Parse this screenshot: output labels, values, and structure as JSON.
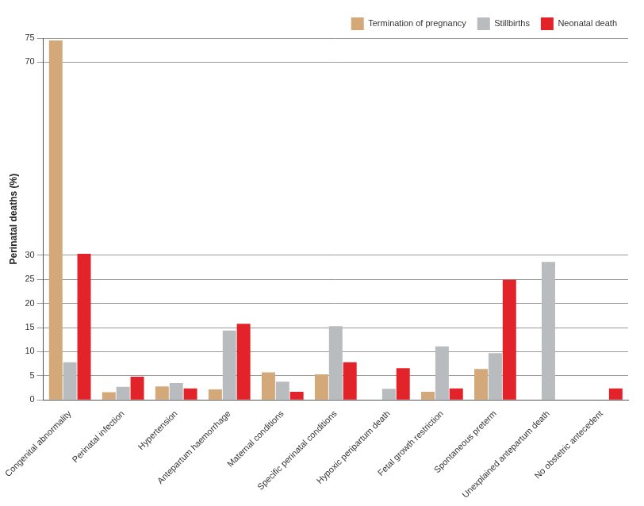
{
  "chart_data": {
    "type": "bar",
    "y_label": "Perinatal deaths (%)",
    "categories": [
      "Congenital abnormality",
      "Perinatal infection",
      "Hypertension",
      "Antepartum haemorrhage",
      "Maternal conditions",
      "Specific perinatal conditions",
      "Hypoxic peripartum death",
      "Fetal growth restriction",
      "Spontaneous preterm",
      "Unexplained antepartum death",
      "No obstetric antecedent"
    ],
    "series": [
      {
        "name": "Termination of pregnancy",
        "color": "#d4a97a",
        "values": [
          74.5,
          1.6,
          2.8,
          2.2,
          5.7,
          5.3,
          0,
          1.7,
          6.4,
          0,
          0
        ]
      },
      {
        "name": "Stillbirths",
        "color": "#b9bcbf",
        "values": [
          7.8,
          2.7,
          3.5,
          14.4,
          3.8,
          15.3,
          2.3,
          11.1,
          9.7,
          28.6,
          0
        ]
      },
      {
        "name": "Neonatal death",
        "color": "#e3232a",
        "values": [
          30.3,
          4.8,
          2.4,
          15.8,
          1.7,
          7.8,
          6.6,
          2.4,
          24.9,
          0,
          2.4
        ]
      }
    ],
    "ylim": [
      0,
      75
    ],
    "yticks": [
      0,
      5,
      10,
      15,
      20,
      25,
      30,
      70,
      75
    ],
    "grid": true,
    "legend": "top-right"
  }
}
